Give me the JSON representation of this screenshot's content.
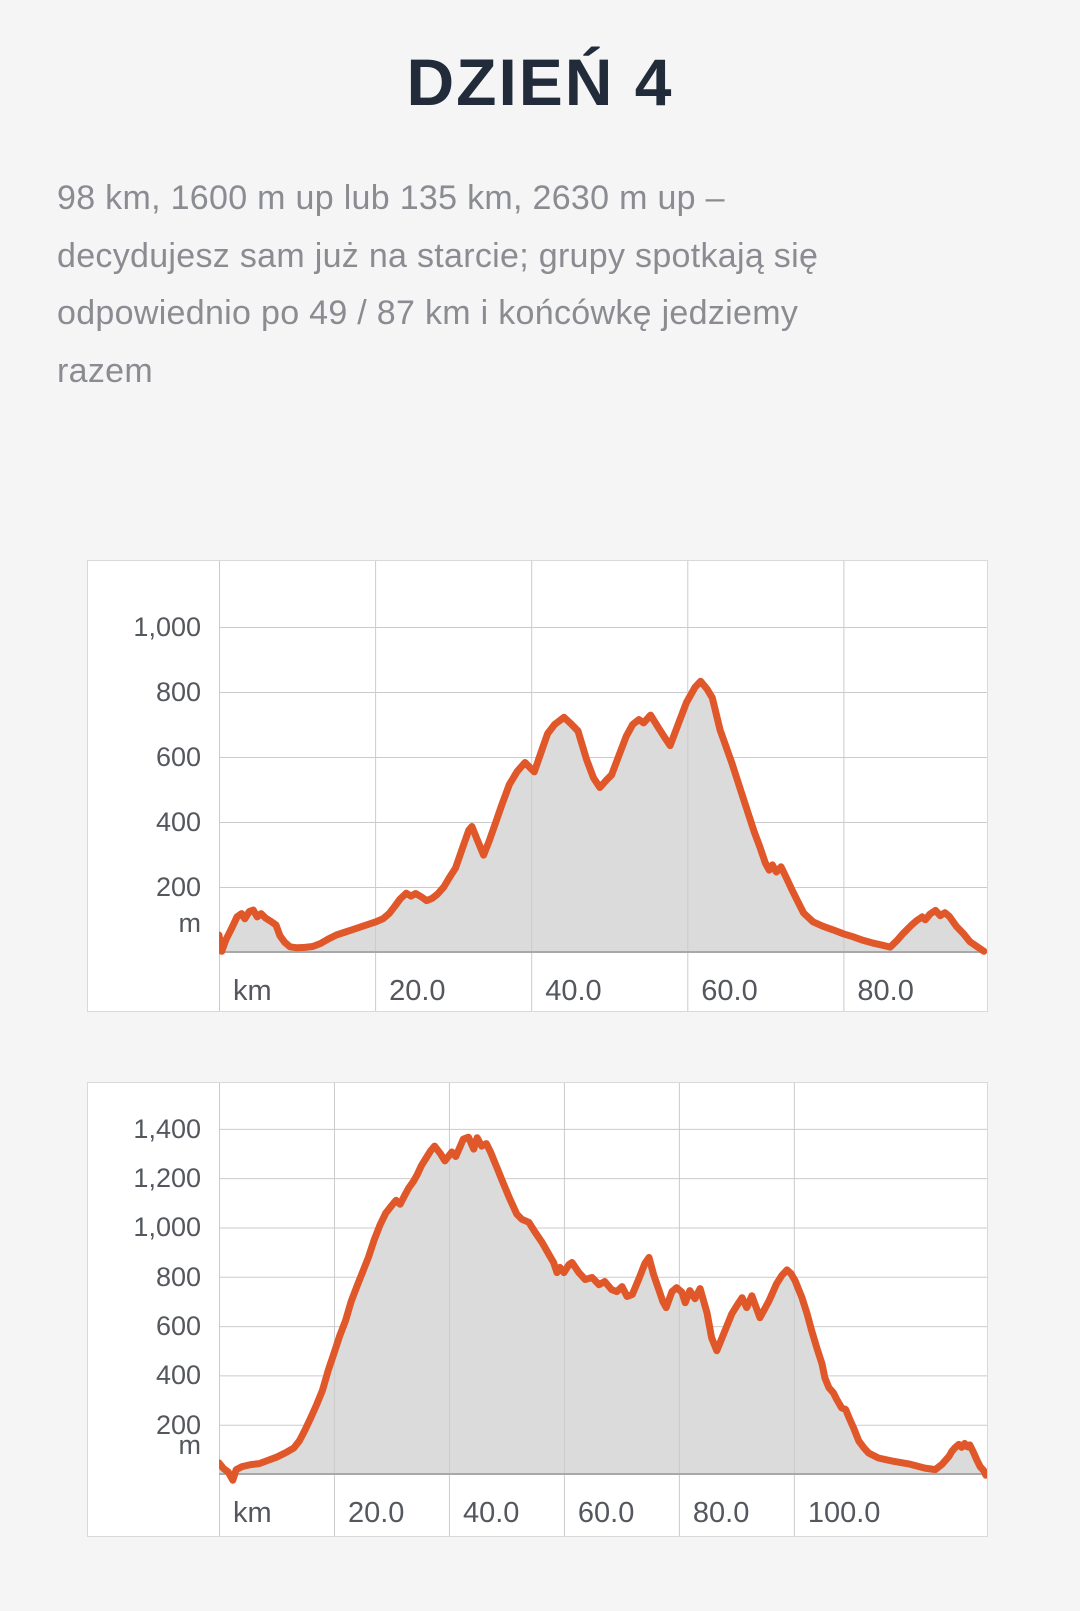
{
  "page": {
    "title": "DZIEŃ 4",
    "intro_lines": [
      "98 km, 1600 m up lub 135 km, 2630 m up –",
      "decydujesz sam już na starcie; grupy spotkają się",
      "odpowiednio po 49 / 87 km i końcówkę jedziemy",
      "razem"
    ]
  },
  "theme": {
    "page_bg": "#f5f5f6",
    "title_color": "#212b39",
    "body_text_color": "#8b8c91",
    "panel_bg": "#ffffff",
    "panel_border": "#d9d9d9",
    "grid_color": "#cbcbcb",
    "axis_color": "#a8a8a8",
    "tick_text_color": "#54575d",
    "line_color": "#e0572a",
    "fill_color": "#dbdbdb"
  },
  "chart_data": [
    {
      "type": "area",
      "name": "elevation-profile-route-98km",
      "x_unit": "km",
      "y_unit": "m",
      "grid": true,
      "legend": "none",
      "x_range_km": [
        0,
        98.4
      ],
      "y_range_m": [
        0,
        1203
      ],
      "x_tick_values": [
        20,
        40,
        60,
        80
      ],
      "x_tick_labels": [
        "20.0",
        "40.0",
        "60.0",
        "80.0"
      ],
      "y_tick_values": [
        200,
        400,
        600,
        800,
        1000
      ],
      "y_tick_labels": [
        "200",
        "400",
        "600",
        "800",
        "1,000"
      ],
      "series_km_m": [
        [
          0,
          52
        ],
        [
          0.35,
          2
        ],
        [
          0.9,
          38
        ],
        [
          1.6,
          72
        ],
        [
          2.3,
          108
        ],
        [
          2.9,
          118
        ],
        [
          3.3,
          102
        ],
        [
          3.9,
          125
        ],
        [
          4.4,
          129
        ],
        [
          4.9,
          108
        ],
        [
          5.4,
          118
        ],
        [
          6,
          104
        ],
        [
          6.6,
          95
        ],
        [
          7.3,
          83
        ],
        [
          7.8,
          50
        ],
        [
          8.4,
          30
        ],
        [
          9.1,
          16
        ],
        [
          10,
          13
        ],
        [
          11,
          14
        ],
        [
          12,
          17
        ],
        [
          13,
          26
        ],
        [
          14,
          40
        ],
        [
          15,
          52
        ],
        [
          16,
          60
        ],
        [
          17,
          68
        ],
        [
          18,
          76
        ],
        [
          19,
          84
        ],
        [
          20,
          92
        ],
        [
          21,
          102
        ],
        [
          21.8,
          118
        ],
        [
          22.5,
          140
        ],
        [
          23.2,
          163
        ],
        [
          24,
          181
        ],
        [
          24.6,
          172
        ],
        [
          25.2,
          180
        ],
        [
          25.9,
          170
        ],
        [
          26.6,
          158
        ],
        [
          27.3,
          165
        ],
        [
          28,
          178
        ],
        [
          28.8,
          200
        ],
        [
          29.6,
          232
        ],
        [
          30.3,
          258
        ],
        [
          31.2,
          320
        ],
        [
          32,
          375
        ],
        [
          32.4,
          386
        ],
        [
          33.1,
          345
        ],
        [
          33.9,
          298
        ],
        [
          34.6,
          340
        ],
        [
          35.4,
          395
        ],
        [
          36.2,
          450
        ],
        [
          37.2,
          515
        ],
        [
          38.2,
          555
        ],
        [
          39.2,
          583
        ],
        [
          39.9,
          566
        ],
        [
          40.4,
          554
        ],
        [
          41.2,
          610
        ],
        [
          42.1,
          672
        ],
        [
          43,
          700
        ],
        [
          44.2,
          722
        ],
        [
          45.1,
          702
        ],
        [
          46,
          680
        ],
        [
          47.1,
          592
        ],
        [
          48,
          535
        ],
        [
          48.8,
          506
        ],
        [
          49.6,
          528
        ],
        [
          50.3,
          545
        ],
        [
          51.2,
          602
        ],
        [
          52.2,
          665
        ],
        [
          53,
          700
        ],
        [
          53.8,
          715
        ],
        [
          54.4,
          705
        ],
        [
          55.3,
          729
        ],
        [
          56.3,
          690
        ],
        [
          57.1,
          660
        ],
        [
          57.8,
          635
        ],
        [
          58.9,
          705
        ],
        [
          59.9,
          768
        ],
        [
          61,
          815
        ],
        [
          61.7,
          833
        ],
        [
          62.5,
          810
        ],
        [
          63.2,
          782
        ],
        [
          64.2,
          683
        ],
        [
          65.7,
          582
        ],
        [
          67.1,
          478
        ],
        [
          68.6,
          368
        ],
        [
          69.3,
          323
        ],
        [
          70,
          274
        ],
        [
          70.5,
          252
        ],
        [
          70.9,
          268
        ],
        [
          71.4,
          246
        ],
        [
          72,
          262
        ],
        [
          72.7,
          228
        ],
        [
          73.3,
          197
        ],
        [
          74.1,
          158
        ],
        [
          74.9,
          120
        ],
        [
          76.1,
          93
        ],
        [
          77.4,
          79
        ],
        [
          78.7,
          68
        ],
        [
          80,
          56
        ],
        [
          81.2,
          47
        ],
        [
          82.5,
          36
        ],
        [
          83.7,
          28
        ],
        [
          85,
          21
        ],
        [
          86,
          15
        ],
        [
          86.9,
          36
        ],
        [
          87.7,
          58
        ],
        [
          88.7,
          82
        ],
        [
          89.4,
          97
        ],
        [
          90.1,
          108
        ],
        [
          90.5,
          99
        ],
        [
          91.1,
          117
        ],
        [
          91.8,
          128
        ],
        [
          92.4,
          112
        ],
        [
          93,
          121
        ],
        [
          93.6,
          109
        ],
        [
          94.5,
          78
        ],
        [
          95.4,
          56
        ],
        [
          96.2,
          32
        ],
        [
          97.1,
          17
        ],
        [
          98,
          2
        ]
      ]
    },
    {
      "type": "area",
      "name": "elevation-profile-route-135km",
      "x_unit": "km",
      "y_unit": "m",
      "grid": true,
      "legend": "none",
      "x_range_km": [
        0,
        133.6
      ],
      "y_range_m": [
        0,
        1586
      ],
      "x_tick_values": [
        20,
        40,
        60,
        80,
        100
      ],
      "x_tick_labels": [
        "20.0",
        "40.0",
        "60.0",
        "80.0",
        "100.0"
      ],
      "y_tick_values": [
        200,
        400,
        600,
        800,
        1000,
        1200,
        1400
      ],
      "y_tick_labels": [
        "200",
        "400",
        "600",
        "800",
        "1,000",
        "1,200",
        "1,400"
      ],
      "series_km_m": [
        [
          0,
          45
        ],
        [
          0.8,
          22
        ],
        [
          1.6,
          8
        ],
        [
          2.4,
          -25
        ],
        [
          3,
          18
        ],
        [
          4,
          30
        ],
        [
          5.5,
          38
        ],
        [
          7,
          42
        ],
        [
          8.5,
          55
        ],
        [
          10,
          68
        ],
        [
          11.5,
          85
        ],
        [
          13,
          105
        ],
        [
          14,
          135
        ],
        [
          15,
          180
        ],
        [
          16,
          230
        ],
        [
          17,
          282
        ],
        [
          18,
          340
        ],
        [
          19,
          420
        ],
        [
          20,
          490
        ],
        [
          21,
          560
        ],
        [
          22,
          622
        ],
        [
          23,
          700
        ],
        [
          24,
          762
        ],
        [
          25,
          820
        ],
        [
          26,
          880
        ],
        [
          27,
          950
        ],
        [
          28,
          1010
        ],
        [
          29,
          1058
        ],
        [
          30,
          1088
        ],
        [
          30.8,
          1110
        ],
        [
          31.5,
          1094
        ],
        [
          32.3,
          1130
        ],
        [
          33,
          1160
        ],
        [
          33.8,
          1186
        ],
        [
          34.5,
          1215
        ],
        [
          35.2,
          1250
        ],
        [
          36,
          1280
        ],
        [
          36.8,
          1310
        ],
        [
          37.5,
          1330
        ],
        [
          38.5,
          1300
        ],
        [
          39.3,
          1270
        ],
        [
          40.5,
          1306
        ],
        [
          41.2,
          1288
        ],
        [
          42.5,
          1358
        ],
        [
          43.4,
          1366
        ],
        [
          44.3,
          1318
        ],
        [
          44.9,
          1364
        ],
        [
          45.7,
          1330
        ],
        [
          46.5,
          1340
        ],
        [
          47.2,
          1308
        ],
        [
          48.3,
          1245
        ],
        [
          49.5,
          1176
        ],
        [
          50.6,
          1115
        ],
        [
          51.8,
          1054
        ],
        [
          52.7,
          1033
        ],
        [
          53.9,
          1021
        ],
        [
          55,
          980
        ],
        [
          56.2,
          939
        ],
        [
          57.4,
          890
        ],
        [
          58.2,
          858
        ],
        [
          58.8,
          817
        ],
        [
          59.3,
          838
        ],
        [
          60,
          817
        ],
        [
          60.9,
          850
        ],
        [
          61.4,
          858
        ],
        [
          62.6,
          817
        ],
        [
          63.7,
          789
        ],
        [
          64.9,
          797
        ],
        [
          66.1,
          768
        ],
        [
          67.1,
          781
        ],
        [
          68.3,
          748
        ],
        [
          69.2,
          740
        ],
        [
          70.1,
          760
        ],
        [
          71,
          720
        ],
        [
          71.9,
          728
        ],
        [
          73,
          789
        ],
        [
          74.1,
          855
        ],
        [
          74.8,
          878
        ],
        [
          75.6,
          809
        ],
        [
          76.5,
          748
        ],
        [
          77.2,
          700
        ],
        [
          77.8,
          675
        ],
        [
          78.8,
          740
        ],
        [
          79.6,
          756
        ],
        [
          80.5,
          738
        ],
        [
          81.1,
          695
        ],
        [
          81.9,
          744
        ],
        [
          82.8,
          711
        ],
        [
          83.7,
          752
        ],
        [
          84.9,
          654
        ],
        [
          85.7,
          553
        ],
        [
          86.6,
          500
        ],
        [
          88,
          581
        ],
        [
          89.2,
          650
        ],
        [
          90.1,
          683
        ],
        [
          91,
          715
        ],
        [
          91.8,
          675
        ],
        [
          92.7,
          723
        ],
        [
          94.1,
          634
        ],
        [
          95.7,
          703
        ],
        [
          97,
          772
        ],
        [
          97.9,
          805
        ],
        [
          98.8,
          828
        ],
        [
          99.5,
          813
        ],
        [
          100.2,
          785
        ],
        [
          101.4,
          716
        ],
        [
          102.3,
          650
        ],
        [
          103.1,
          581
        ],
        [
          104,
          512
        ],
        [
          104.9,
          447
        ],
        [
          105.4,
          390
        ],
        [
          106.1,
          350
        ],
        [
          106.9,
          329
        ],
        [
          107.4,
          305
        ],
        [
          108.3,
          268
        ],
        [
          109,
          262
        ],
        [
          109.7,
          223
        ],
        [
          110.4,
          187
        ],
        [
          111.3,
          134
        ],
        [
          112.2,
          106
        ],
        [
          113,
          85
        ],
        [
          114.7,
          65
        ],
        [
          117,
          53
        ],
        [
          120,
          41
        ],
        [
          122.8,
          24
        ],
        [
          124.6,
          18
        ],
        [
          125.8,
          40
        ],
        [
          127,
          72
        ],
        [
          127.5,
          92
        ],
        [
          128,
          106
        ],
        [
          128.7,
          120
        ],
        [
          129.2,
          108
        ],
        [
          129.7,
          124
        ],
        [
          130.2,
          110
        ],
        [
          130.6,
          118
        ],
        [
          131.3,
          85
        ],
        [
          131.8,
          58
        ],
        [
          132.4,
          30
        ],
        [
          133,
          14
        ],
        [
          133.4,
          -5
        ]
      ]
    }
  ]
}
